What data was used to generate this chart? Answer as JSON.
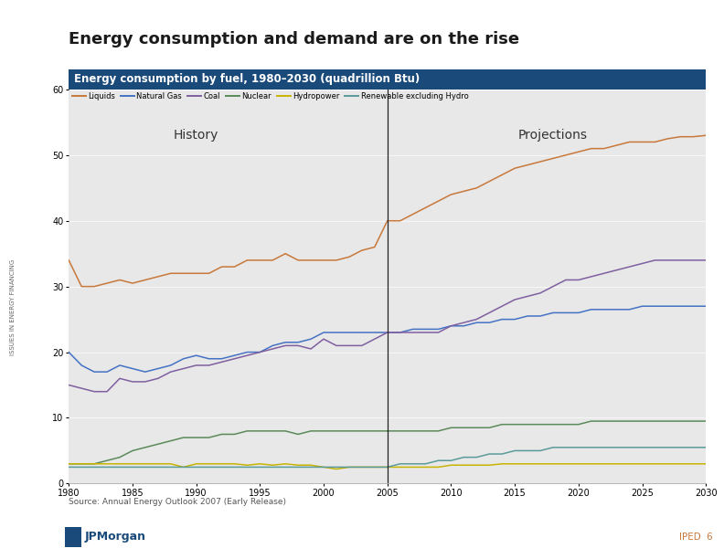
{
  "title": "Energy consumption and demand are on the rise",
  "subtitle": "Energy consumption by fuel, 1980–2030 (quadrillion Btu)",
  "subtitle_bg": "#1a4a7a",
  "subtitle_color": "#ffffff",
  "chart_bg": "#e8e8e8",
  "source": "Source: Annual Energy Outlook 2007 (Early Release)",
  "history_label": "History",
  "projections_label": "Projections",
  "divider_year": 2005,
  "ylim": [
    0,
    60
  ],
  "yticks": [
    0,
    10,
    20,
    30,
    40,
    50,
    60
  ],
  "xticks": [
    1980,
    1985,
    1990,
    1995,
    2000,
    2005,
    2010,
    2015,
    2020,
    2025,
    2030
  ],
  "series": {
    "Liquids": {
      "color": "#c8783a",
      "years": [
        1980,
        1981,
        1982,
        1983,
        1984,
        1985,
        1986,
        1987,
        1988,
        1989,
        1990,
        1991,
        1992,
        1993,
        1994,
        1995,
        1996,
        1997,
        1998,
        1999,
        2000,
        2001,
        2002,
        2003,
        2004,
        2005,
        2006,
        2007,
        2008,
        2009,
        2010,
        2011,
        2012,
        2013,
        2014,
        2015,
        2016,
        2017,
        2018,
        2019,
        2020,
        2021,
        2022,
        2023,
        2024,
        2025,
        2026,
        2027,
        2028,
        2029,
        2030
      ],
      "values": [
        34,
        30,
        30,
        30.5,
        31,
        30.5,
        31,
        31.5,
        32,
        32,
        32,
        32,
        33,
        33,
        34,
        34,
        34,
        35,
        34,
        34,
        34,
        34,
        34.5,
        35.5,
        36,
        40,
        40,
        41,
        42,
        43,
        44,
        44.5,
        45,
        46,
        47,
        48,
        48.5,
        49,
        49.5,
        50,
        50.5,
        51,
        51,
        51.5,
        52,
        52,
        52,
        52.5,
        52.8,
        52.8,
        53
      ]
    },
    "Natural Gas": {
      "color": "#4472c4",
      "years": [
        1980,
        1981,
        1982,
        1983,
        1984,
        1985,
        1986,
        1987,
        1988,
        1989,
        1990,
        1991,
        1992,
        1993,
        1994,
        1995,
        1996,
        1997,
        1998,
        1999,
        2000,
        2001,
        2002,
        2003,
        2004,
        2005,
        2006,
        2007,
        2008,
        2009,
        2010,
        2011,
        2012,
        2013,
        2014,
        2015,
        2016,
        2017,
        2018,
        2019,
        2020,
        2021,
        2022,
        2023,
        2024,
        2025,
        2026,
        2027,
        2028,
        2029,
        2030
      ],
      "values": [
        20,
        18,
        17,
        17,
        18,
        17.5,
        17,
        17.5,
        18,
        19,
        19.5,
        19,
        19,
        19.5,
        20,
        20,
        21,
        21.5,
        21.5,
        22,
        23,
        23,
        23,
        23,
        23,
        23,
        23,
        23.5,
        23.5,
        23.5,
        24,
        24,
        24.5,
        24.5,
        25,
        25,
        25.5,
        25.5,
        26,
        26,
        26,
        26.5,
        26.5,
        26.5,
        26.5,
        27,
        27,
        27,
        27,
        27,
        27
      ]
    },
    "Coal": {
      "color": "#7f5fa0",
      "years": [
        1980,
        1981,
        1982,
        1983,
        1984,
        1985,
        1986,
        1987,
        1988,
        1989,
        1990,
        1991,
        1992,
        1993,
        1994,
        1995,
        1996,
        1997,
        1998,
        1999,
        2000,
        2001,
        2002,
        2003,
        2004,
        2005,
        2006,
        2007,
        2008,
        2009,
        2010,
        2011,
        2012,
        2013,
        2014,
        2015,
        2016,
        2017,
        2018,
        2019,
        2020,
        2021,
        2022,
        2023,
        2024,
        2025,
        2026,
        2027,
        2028,
        2029,
        2030
      ],
      "values": [
        15,
        14.5,
        14,
        14,
        16,
        15.5,
        15.5,
        16,
        17,
        17.5,
        18,
        18,
        18.5,
        19,
        19.5,
        20,
        20.5,
        21,
        21,
        20.5,
        22,
        21,
        21,
        21,
        22,
        23,
        23,
        23,
        23,
        23,
        24,
        24.5,
        25,
        26,
        27,
        28,
        28.5,
        29,
        30,
        31,
        31,
        31.5,
        32,
        32.5,
        33,
        33.5,
        34,
        34,
        34,
        34,
        34
      ]
    },
    "Nuclear": {
      "color": "#5a8a5a",
      "years": [
        1980,
        1981,
        1982,
        1983,
        1984,
        1985,
        1986,
        1987,
        1988,
        1989,
        1990,
        1991,
        1992,
        1993,
        1994,
        1995,
        1996,
        1997,
        1998,
        1999,
        2000,
        2001,
        2002,
        2003,
        2004,
        2005,
        2006,
        2007,
        2008,
        2009,
        2010,
        2011,
        2012,
        2013,
        2014,
        2015,
        2016,
        2017,
        2018,
        2019,
        2020,
        2021,
        2022,
        2023,
        2024,
        2025,
        2026,
        2027,
        2028,
        2029,
        2030
      ],
      "values": [
        3,
        3,
        3,
        3.5,
        4,
        5,
        5.5,
        6,
        6.5,
        7,
        7,
        7,
        7.5,
        7.5,
        8,
        8,
        8,
        8,
        7.5,
        8,
        8,
        8,
        8,
        8,
        8,
        8,
        8,
        8,
        8,
        8,
        8.5,
        8.5,
        8.5,
        8.5,
        9,
        9,
        9,
        9,
        9,
        9,
        9,
        9.5,
        9.5,
        9.5,
        9.5,
        9.5,
        9.5,
        9.5,
        9.5,
        9.5,
        9.5
      ]
    },
    "Hydropower": {
      "color": "#c8b400",
      "years": [
        1980,
        1981,
        1982,
        1983,
        1984,
        1985,
        1986,
        1987,
        1988,
        1989,
        1990,
        1991,
        1992,
        1993,
        1994,
        1995,
        1996,
        1997,
        1998,
        1999,
        2000,
        2001,
        2002,
        2003,
        2004,
        2005,
        2006,
        2007,
        2008,
        2009,
        2010,
        2011,
        2012,
        2013,
        2014,
        2015,
        2016,
        2017,
        2018,
        2019,
        2020,
        2021,
        2022,
        2023,
        2024,
        2025,
        2026,
        2027,
        2028,
        2029,
        2030
      ],
      "values": [
        3,
        3,
        3,
        3,
        3,
        3,
        3,
        3,
        3,
        2.5,
        3,
        3,
        3,
        3,
        2.8,
        3,
        2.8,
        3,
        2.8,
        2.8,
        2.5,
        2.2,
        2.5,
        2.5,
        2.5,
        2.5,
        2.5,
        2.5,
        2.5,
        2.5,
        2.8,
        2.8,
        2.8,
        2.8,
        3,
        3,
        3,
        3,
        3,
        3,
        3,
        3,
        3,
        3,
        3,
        3,
        3,
        3,
        3,
        3,
        3
      ]
    },
    "Renewable excluding Hydro": {
      "color": "#5a9a9a",
      "years": [
        1980,
        1981,
        1982,
        1983,
        1984,
        1985,
        1986,
        1987,
        1988,
        1989,
        1990,
        1991,
        1992,
        1993,
        1994,
        1995,
        1996,
        1997,
        1998,
        1999,
        2000,
        2001,
        2002,
        2003,
        2004,
        2005,
        2006,
        2007,
        2008,
        2009,
        2010,
        2011,
        2012,
        2013,
        2014,
        2015,
        2016,
        2017,
        2018,
        2019,
        2020,
        2021,
        2022,
        2023,
        2024,
        2025,
        2026,
        2027,
        2028,
        2029,
        2030
      ],
      "values": [
        2.5,
        2.5,
        2.5,
        2.5,
        2.5,
        2.5,
        2.5,
        2.5,
        2.5,
        2.5,
        2.5,
        2.5,
        2.5,
        2.5,
        2.5,
        2.5,
        2.5,
        2.5,
        2.5,
        2.5,
        2.5,
        2.5,
        2.5,
        2.5,
        2.5,
        2.5,
        3,
        3,
        3,
        3.5,
        3.5,
        4,
        4,
        4.5,
        4.5,
        5,
        5,
        5,
        5.5,
        5.5,
        5.5,
        5.5,
        5.5,
        5.5,
        5.5,
        5.5,
        5.5,
        5.5,
        5.5,
        5.5,
        5.5
      ]
    }
  },
  "legend_order": [
    "Liquids",
    "Natural Gas",
    "Coal",
    "Nuclear",
    "Hydropower",
    "Renewable excluding Hydro"
  ],
  "page_bg": "#ffffff",
  "sidebar_text": "ISSUES IN ENERGY FINANCING",
  "sidebar_color": "#666666",
  "footer_logo_color": "#1a4a7a",
  "footer_right_text": "IPED",
  "footer_right_num": "6",
  "footer_right_color": "#c8783a"
}
